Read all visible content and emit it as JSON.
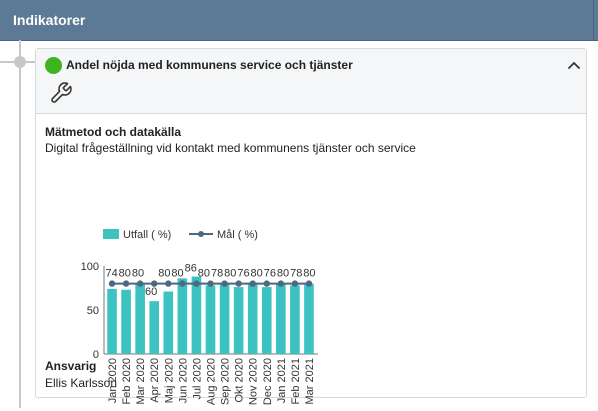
{
  "header": {
    "title": "Indikatorer"
  },
  "card": {
    "status_color": "#3cb521",
    "title": "Andel nöjda med kommunens service och tjänster",
    "collapse_icon": "chevron-up-icon",
    "tool_icon": "wrench-icon",
    "method_label": "Mätmetod och datakälla",
    "method_text": "Digital frågeställning vid kontakt med kommunens tjänster och service",
    "responsible_label": "Ansvarig",
    "responsible_name": "Ellis Karlsson"
  },
  "chart_data": {
    "type": "bar",
    "categories": [
      "Jan 2020",
      "Feb 2020",
      "Mar 2020",
      "Apr 2020",
      "Maj 2020",
      "Jun 2020",
      "Jul 2020",
      "Aug 2020",
      "Sep 2020",
      "Okt 2020",
      "Nov 2020",
      "Dec 2020",
      "Jan 2021",
      "Feb 2021",
      "Mar 2021"
    ],
    "series": [
      {
        "name": "Utfall ( %)",
        "type": "bar",
        "color": "#3cc2c0",
        "values": [
          74,
          73,
          80,
          60,
          71,
          86,
          88,
          78,
          80,
          76,
          80,
          76,
          80,
          78,
          80
        ]
      },
      {
        "name": "Mål ( %)",
        "type": "line",
        "color": "#4d6880",
        "values": [
          80,
          80,
          80,
          80,
          80,
          80,
          80,
          80,
          80,
          80,
          80,
          80,
          80,
          80,
          80
        ]
      }
    ],
    "data_labels": [
      "74",
      "80",
      "80",
      "60",
      "80",
      "80",
      "86",
      "80",
      "78",
      "80",
      "76",
      "80",
      "76",
      "80",
      "78",
      "80"
    ],
    "ylim": [
      0,
      100
    ],
    "yticks": [
      0,
      50,
      100
    ],
    "legend_position": "top-left",
    "grid": false
  }
}
